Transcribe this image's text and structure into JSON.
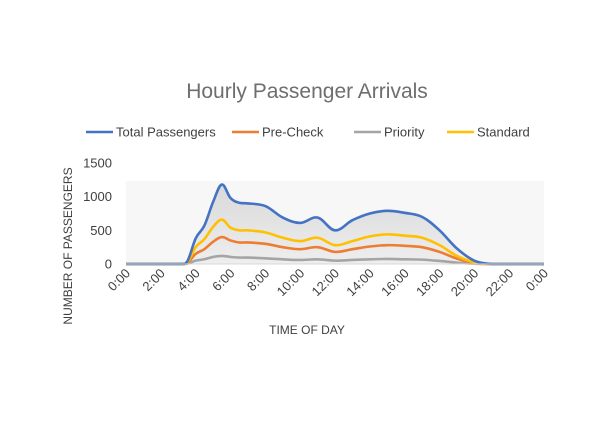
{
  "chart_data": {
    "type": "area",
    "title": "Hourly Passenger Arrivals",
    "xlabel": "TIME OF DAY",
    "ylabel": "NUMBER OF PASSENGERS",
    "xlim": [
      0,
      24
    ],
    "ylim": [
      0,
      1500
    ],
    "y_ticks": [
      "0",
      "500",
      "1000",
      "1500"
    ],
    "x_ticks": [
      "0:00",
      "2:00",
      "4:00",
      "6:00",
      "8:00",
      "10:00",
      "12:00",
      "14:00",
      "16:00",
      "18:00",
      "20:00",
      "22:00",
      "0:00"
    ],
    "legend_position": "top",
    "grid": false,
    "x": [
      0,
      3,
      3.5,
      4,
      4.5,
      5,
      5.5,
      6,
      6.5,
      7,
      8,
      9,
      10,
      11,
      12,
      13,
      14,
      15,
      16,
      17,
      18,
      19,
      20,
      21,
      22,
      23,
      24
    ],
    "series": [
      {
        "name": "Total Passengers",
        "color": "#4472c4",
        "values": [
          0,
          0,
          30,
          380,
          570,
          920,
          1180,
          980,
          910,
          900,
          860,
          690,
          610,
          690,
          500,
          650,
          750,
          790,
          760,
          700,
          500,
          230,
          50,
          0,
          0,
          0,
          0
        ]
      },
      {
        "name": "Pre-Check",
        "color": "#ed7d31",
        "values": [
          0,
          0,
          10,
          150,
          220,
          330,
          400,
          350,
          320,
          320,
          300,
          250,
          220,
          250,
          180,
          220,
          260,
          280,
          270,
          250,
          180,
          80,
          15,
          0,
          0,
          0,
          0
        ]
      },
      {
        "name": "Priority",
        "color": "#a5a5a5",
        "values": [
          0,
          0,
          3,
          50,
          70,
          105,
          120,
          105,
          95,
          95,
          85,
          70,
          60,
          70,
          50,
          60,
          70,
          75,
          70,
          65,
          45,
          20,
          5,
          0,
          0,
          0,
          0
        ]
      },
      {
        "name": "Standard",
        "color": "#ffc000",
        "values": [
          0,
          0,
          18,
          250,
          370,
          550,
          660,
          540,
          500,
          500,
          470,
          390,
          340,
          390,
          280,
          340,
          410,
          440,
          420,
          390,
          280,
          120,
          25,
          0,
          0,
          0,
          0
        ]
      }
    ]
  }
}
